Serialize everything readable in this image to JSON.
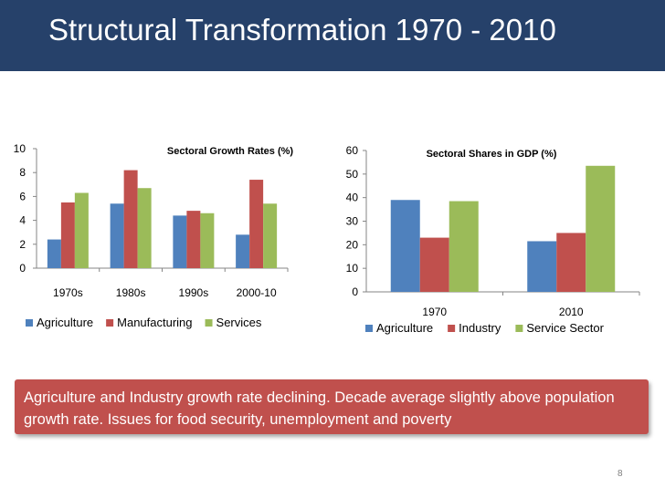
{
  "slide": {
    "title": "Structural Transformation 1970 - 2010",
    "callout": "Agriculture and Industry growth rate declining. Decade average slightly above population growth rate. Issues for food security, unemployment and poverty",
    "page_number": "8"
  },
  "colors": {
    "title_bar": "#26416a",
    "callout": "#c0504d",
    "series_blue": "#4f81bd",
    "series_red": "#c0504d",
    "series_green": "#9bbb59"
  },
  "chart_data": [
    {
      "type": "bar",
      "title": "Sectoral Growth Rates (%)",
      "categories": [
        "1970s",
        "1980s",
        "1990s",
        "2000-10"
      ],
      "series": [
        {
          "name": "Agriculture",
          "color": "#4f81bd",
          "values": [
            2.4,
            5.4,
            4.4,
            2.8
          ]
        },
        {
          "name": "Manufacturing",
          "color": "#c0504d",
          "values": [
            5.5,
            8.2,
            4.8,
            7.4
          ]
        },
        {
          "name": "Services",
          "color": "#9bbb59",
          "values": [
            6.3,
            6.7,
            4.6,
            5.4
          ]
        }
      ],
      "ylim": [
        0,
        10
      ],
      "yticks": [
        0,
        2,
        4,
        6,
        8,
        10
      ],
      "legend": "bottom"
    },
    {
      "type": "bar",
      "title": "Sectoral Shares in GDP (%)",
      "categories": [
        "1970",
        "2010"
      ],
      "series": [
        {
          "name": "Agriculture",
          "color": "#4f81bd",
          "values": [
            39,
            21.5
          ]
        },
        {
          "name": "Industry",
          "color": "#c0504d",
          "values": [
            23,
            25
          ]
        },
        {
          "name": "Service Sector",
          "color": "#9bbb59",
          "values": [
            38.5,
            53.5
          ]
        }
      ],
      "ylim": [
        0,
        60
      ],
      "yticks": [
        0,
        10,
        20,
        30,
        40,
        50,
        60
      ],
      "legend": "bottom"
    }
  ]
}
